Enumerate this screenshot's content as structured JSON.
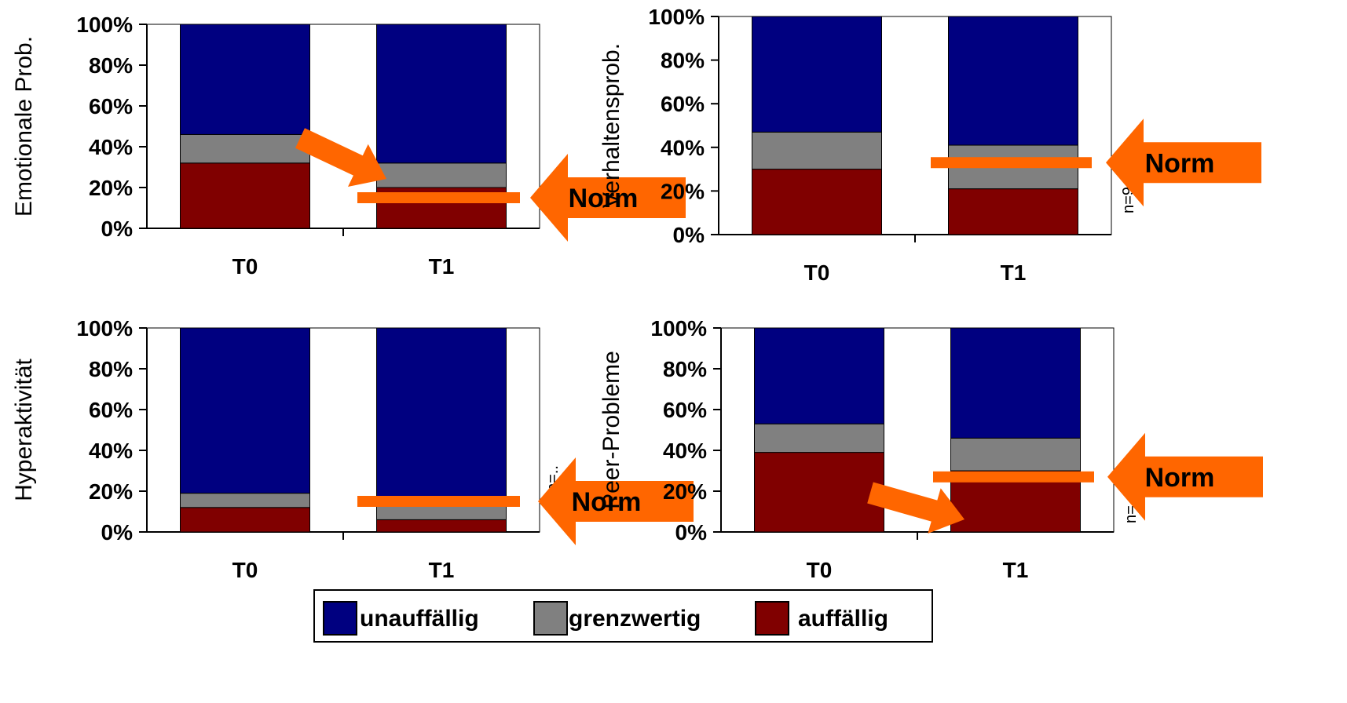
{
  "colors": {
    "unauffaellig": "#000080",
    "grenzwertig": "#808080",
    "auffaellig": "#800000",
    "arrow": "#ff6600"
  },
  "legend": {
    "items": [
      {
        "label": "unauffällig",
        "color_key": "unauffaellig"
      },
      {
        "label": "grenzwertig",
        "color_key": "grenzwertig"
      },
      {
        "label": "auffällig",
        "color_key": "auffaellig"
      }
    ]
  },
  "chart_data": [
    {
      "type": "bar",
      "stacked": true,
      "ylabel": "Emotionale Prob.",
      "n_label": "n=..",
      "categories": [
        "T0",
        "T1"
      ],
      "ylim": [
        0,
        100
      ],
      "yticks": [
        "0%",
        "20%",
        "40%",
        "60%",
        "80%",
        "100%"
      ],
      "series": [
        {
          "name": "auffällig",
          "values": [
            32,
            20
          ]
        },
        {
          "name": "grenzwertig",
          "values": [
            14,
            12
          ]
        },
        {
          "name": "unauffällig",
          "values": [
            54,
            68
          ]
        }
      ],
      "norm_label": "Norm",
      "norm_value": 15,
      "trend_arrow": true
    },
    {
      "type": "bar",
      "stacked": true,
      "ylabel": "Verhaltensprob.",
      "n_label": "n=9",
      "categories": [
        "T0",
        "T1"
      ],
      "ylim": [
        0,
        100
      ],
      "yticks": [
        "0%",
        "20%",
        "40%",
        "60%",
        "80%",
        "100%"
      ],
      "series": [
        {
          "name": "auffällig",
          "values": [
            30,
            21
          ]
        },
        {
          "name": "grenzwertig",
          "values": [
            17,
            20
          ]
        },
        {
          "name": "unauffällig",
          "values": [
            53,
            59
          ]
        }
      ],
      "norm_label": "Norm",
      "norm_value": 33,
      "trend_arrow": false
    },
    {
      "type": "bar",
      "stacked": true,
      "ylabel": "Hyperaktivität",
      "n_label": "n=..",
      "categories": [
        "T0",
        "T1"
      ],
      "ylim": [
        0,
        100
      ],
      "yticks": [
        "0%",
        "20%",
        "40%",
        "60%",
        "80%",
        "100%"
      ],
      "series": [
        {
          "name": "auffällig",
          "values": [
            12,
            6
          ]
        },
        {
          "name": "grenzwertig",
          "values": [
            7,
            11
          ]
        },
        {
          "name": "unauffällig",
          "values": [
            81,
            83
          ]
        }
      ],
      "norm_label": "Norm",
      "norm_value": 15,
      "trend_arrow": false
    },
    {
      "type": "bar",
      "stacked": true,
      "ylabel": "Peer-Probleme",
      "n_label": "n=..",
      "categories": [
        "T0",
        "T1"
      ],
      "ylim": [
        0,
        100
      ],
      "yticks": [
        "0%",
        "20%",
        "40%",
        "60%",
        "80%",
        "100%"
      ],
      "series": [
        {
          "name": "auffällig",
          "values": [
            39,
            30
          ]
        },
        {
          "name": "grenzwertig",
          "values": [
            14,
            16
          ]
        },
        {
          "name": "unauffällig",
          "values": [
            47,
            54
          ]
        }
      ],
      "norm_label": "Norm",
      "norm_value": 27,
      "trend_arrow": true
    }
  ]
}
